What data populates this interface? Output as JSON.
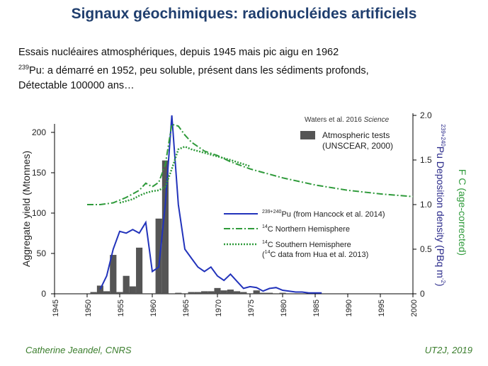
{
  "slide": {
    "title": "Signaux géochimiques: radionucléides artificiels",
    "bullet1": "Essais nucléaires atmosphériques, depuis 1945 mais pic aigu en 1962",
    "bullet2_sup": "239",
    "bullet2_text": "Pu: a démarré en 1952, peu soluble, présent dans les sédiments profonds,",
    "bullet3": "Détectable 100000 ans…",
    "footer_left": "Catherine Jeandel, CNRS",
    "footer_right": "UT2J, 2019"
  },
  "chart_data": {
    "type": "bar",
    "citation": "Waters et al. 2016",
    "citation_journal": "Science",
    "left_ylabel": "Aggregate yield (Mtonnes)",
    "right_ylabel_pu_sup": "239+240",
    "right_ylabel_pu": "Pu Deposition density (PBq m",
    "right_ylabel_pu_unit_sup": "-2",
    "right_ylabel_pu_tail": ")",
    "right_ylabel_c14_sup": "14",
    "right_ylabel_c14": "F  C (age-corrected)",
    "xlim": [
      1945,
      2000
    ],
    "left_ylim": [
      0,
      220
    ],
    "left_ticks": [
      0,
      50,
      100,
      150,
      200
    ],
    "right_ylim": [
      0,
      2.2
    ],
    "right_ticks": [
      "0",
      "0.5",
      "1.0",
      "1.5",
      "2.0"
    ],
    "right_tick_values": [
      0,
      0.5,
      1.0,
      1.5,
      2.0
    ],
    "x_ticks": [
      "1945",
      "1950",
      "1955",
      "1960",
      "1965",
      "1970",
      "1975",
      "1980",
      "1985",
      "1990",
      "1995",
      "2000"
    ],
    "x_tick_values": [
      1945,
      1950,
      1955,
      1960,
      1965,
      1970,
      1975,
      1980,
      1985,
      1990,
      1995,
      2000
    ],
    "colors": {
      "bars": "#555555",
      "pu": "#2233bb",
      "c14": "#2e9a3a",
      "right_axis": "#333399",
      "c14_axis": "#2e9a3a"
    },
    "bars": [
      {
        "year": 1951,
        "value": 2
      },
      {
        "year": 1952,
        "value": 10
      },
      {
        "year": 1953,
        "value": 3
      },
      {
        "year": 1954,
        "value": 48
      },
      {
        "year": 1955,
        "value": 2
      },
      {
        "year": 1956,
        "value": 22
      },
      {
        "year": 1957,
        "value": 9
      },
      {
        "year": 1958,
        "value": 57
      },
      {
        "year": 1961,
        "value": 93
      },
      {
        "year": 1962,
        "value": 165
      },
      {
        "year": 1964,
        "value": 1
      },
      {
        "year": 1966,
        "value": 2
      },
      {
        "year": 1967,
        "value": 2
      },
      {
        "year": 1968,
        "value": 3
      },
      {
        "year": 1969,
        "value": 3
      },
      {
        "year": 1970,
        "value": 7
      },
      {
        "year": 1971,
        "value": 4
      },
      {
        "year": 1972,
        "value": 5
      },
      {
        "year": 1973,
        "value": 3
      },
      {
        "year": 1974,
        "value": 2
      },
      {
        "year": 1976,
        "value": 4
      },
      {
        "year": 1977,
        "value": 1
      },
      {
        "year": 1978,
        "value": 1
      },
      {
        "year": 1980,
        "value": 1
      }
    ],
    "series": [
      {
        "name": "Atmospheric tests",
        "name_line2": "(UNSCEAR, 2000)",
        "kind": "bars"
      },
      {
        "name_sup": "239+240",
        "name": "Pu (from Hancock et al. 2014)",
        "kind": "line",
        "axis": "right",
        "style": "solid",
        "x": [
          1952,
          1953,
          1954,
          1955,
          1956,
          1957,
          1958,
          1959,
          1960,
          1961,
          1962,
          1963,
          1964,
          1965,
          1966,
          1967,
          1968,
          1969,
          1970,
          1971,
          1972,
          1973,
          1974,
          1975,
          1976,
          1977,
          1978,
          1979,
          1980,
          1981,
          1982,
          1983,
          1984,
          1985,
          1986
        ],
        "y": [
          0.05,
          0.2,
          0.5,
          0.7,
          0.68,
          0.72,
          0.68,
          0.8,
          0.25,
          0.3,
          1.0,
          2.0,
          1.0,
          0.5,
          0.4,
          0.3,
          0.25,
          0.3,
          0.2,
          0.15,
          0.22,
          0.14,
          0.06,
          0.08,
          0.07,
          0.03,
          0.06,
          0.07,
          0.04,
          0.03,
          0.02,
          0.02,
          0.01,
          0.01,
          0.01
        ]
      },
      {
        "name_sup": "14",
        "name": "C Northern Hemisphere",
        "kind": "line",
        "axis": "right",
        "style": "dashdot",
        "x": [
          1950,
          1952,
          1954,
          1955,
          1956,
          1957,
          1958,
          1959,
          1960,
          1961,
          1962,
          1963,
          1964,
          1965,
          1966,
          1967,
          1968,
          1970,
          1972,
          1975,
          1980,
          1985,
          1990,
          1995,
          2000
        ],
        "y": [
          1.0,
          1.0,
          1.02,
          1.05,
          1.08,
          1.12,
          1.16,
          1.24,
          1.2,
          1.25,
          1.45,
          1.9,
          1.88,
          1.78,
          1.7,
          1.65,
          1.6,
          1.55,
          1.48,
          1.4,
          1.3,
          1.22,
          1.16,
          1.12,
          1.09
        ]
      },
      {
        "name_sup": "14",
        "name": "C Southern Hemisphere",
        "name_line2_sup": "14",
        "name_line2": "C data from Hua et al. 2013)",
        "kind": "line",
        "axis": "right",
        "style": "dotted",
        "x": [
          1955,
          1957,
          1958,
          1959,
          1960,
          1961,
          1962,
          1963,
          1964,
          1965,
          1966,
          1967,
          1968,
          1970,
          1972,
          1975
        ],
        "y": [
          1.02,
          1.06,
          1.1,
          1.13,
          1.15,
          1.16,
          1.2,
          1.4,
          1.62,
          1.65,
          1.62,
          1.6,
          1.58,
          1.54,
          1.5,
          1.43
        ]
      }
    ]
  }
}
